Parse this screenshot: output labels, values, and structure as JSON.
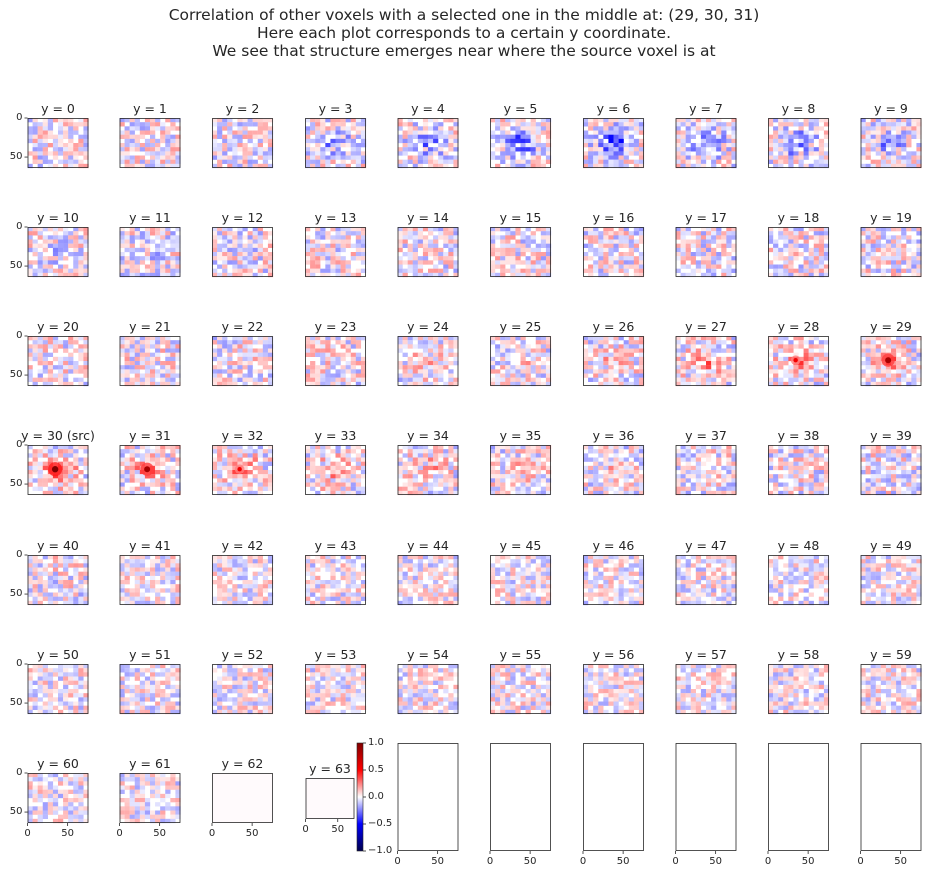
{
  "chart_data": {
    "type": "heatmap",
    "title_lines": [
      "Correlation of other voxels with a selected one in the middle at: (29, 30, 31)",
      "Here each plot corresponds to a certain y coordinate.",
      "We see that structure emerges near where the source voxel is at"
    ],
    "grid": {
      "rows": 7,
      "cols": 10
    },
    "source_voxel": [
      29,
      30,
      31
    ],
    "panels": [
      {
        "title": "y = 0",
        "y": 0
      },
      {
        "title": "y = 1",
        "y": 1
      },
      {
        "title": "y = 2",
        "y": 2
      },
      {
        "title": "y = 3",
        "y": 3
      },
      {
        "title": "y = 4",
        "y": 4
      },
      {
        "title": "y = 5",
        "y": 5
      },
      {
        "title": "y = 6",
        "y": 6
      },
      {
        "title": "y = 7",
        "y": 7
      },
      {
        "title": "y = 8",
        "y": 8
      },
      {
        "title": "y = 9",
        "y": 9
      },
      {
        "title": "y = 10",
        "y": 10
      },
      {
        "title": "y = 11",
        "y": 11
      },
      {
        "title": "y = 12",
        "y": 12
      },
      {
        "title": "y = 13",
        "y": 13
      },
      {
        "title": "y = 14",
        "y": 14
      },
      {
        "title": "y = 15",
        "y": 15
      },
      {
        "title": "y = 16",
        "y": 16
      },
      {
        "title": "y = 17",
        "y": 17
      },
      {
        "title": "y = 18",
        "y": 18
      },
      {
        "title": "y = 19",
        "y": 19
      },
      {
        "title": "y = 20",
        "y": 20
      },
      {
        "title": "y = 21",
        "y": 21
      },
      {
        "title": "y = 22",
        "y": 22
      },
      {
        "title": "y = 23",
        "y": 23
      },
      {
        "title": "y = 24",
        "y": 24
      },
      {
        "title": "y = 25",
        "y": 25
      },
      {
        "title": "y = 26",
        "y": 26
      },
      {
        "title": "y = 27",
        "y": 27
      },
      {
        "title": "y = 28",
        "y": 28
      },
      {
        "title": "y = 29",
        "y": 29
      },
      {
        "title": "y = 30 (src)",
        "y": 30
      },
      {
        "title": "y = 31",
        "y": 31
      },
      {
        "title": "y = 32",
        "y": 32
      },
      {
        "title": "y = 33",
        "y": 33
      },
      {
        "title": "y = 34",
        "y": 34
      },
      {
        "title": "y = 35",
        "y": 35
      },
      {
        "title": "y = 36",
        "y": 36
      },
      {
        "title": "y = 37",
        "y": 37
      },
      {
        "title": "y = 38",
        "y": 38
      },
      {
        "title": "y = 39",
        "y": 39
      },
      {
        "title": "y = 40",
        "y": 40
      },
      {
        "title": "y = 41",
        "y": 41
      },
      {
        "title": "y = 42",
        "y": 42
      },
      {
        "title": "y = 43",
        "y": 43
      },
      {
        "title": "y = 44",
        "y": 44
      },
      {
        "title": "y = 45",
        "y": 45
      },
      {
        "title": "y = 46",
        "y": 46
      },
      {
        "title": "y = 47",
        "y": 47
      },
      {
        "title": "y = 48",
        "y": 48
      },
      {
        "title": "y = 49",
        "y": 49
      },
      {
        "title": "y = 50",
        "y": 50
      },
      {
        "title": "y = 51",
        "y": 51
      },
      {
        "title": "y = 52",
        "y": 52
      },
      {
        "title": "y = 53",
        "y": 53
      },
      {
        "title": "y = 54",
        "y": 54
      },
      {
        "title": "y = 55",
        "y": 55
      },
      {
        "title": "y = 56",
        "y": 56
      },
      {
        "title": "y = 57",
        "y": 57
      },
      {
        "title": "y = 58",
        "y": 58
      },
      {
        "title": "y = 59",
        "y": 59
      },
      {
        "title": "y = 60",
        "y": 60
      },
      {
        "title": "y = 61",
        "y": 61
      },
      {
        "title": "y = 62",
        "y": 62
      },
      {
        "title": "y = 63",
        "y": 63
      }
    ],
    "empty_panel_count": 6,
    "x_ticks": [
      "0",
      "50"
    ],
    "y_ticks": [
      "0",
      "50"
    ],
    "colormap": "seismic",
    "colorbar": {
      "range": [
        -1.0,
        1.0
      ],
      "ticks": [
        "1.0",
        "0.5",
        "0.0",
        "−0.5",
        "−1.0"
      ]
    },
    "colors": {
      "negative": "#00004c",
      "neutral": "#ffffff",
      "positive": "#800000"
    }
  }
}
